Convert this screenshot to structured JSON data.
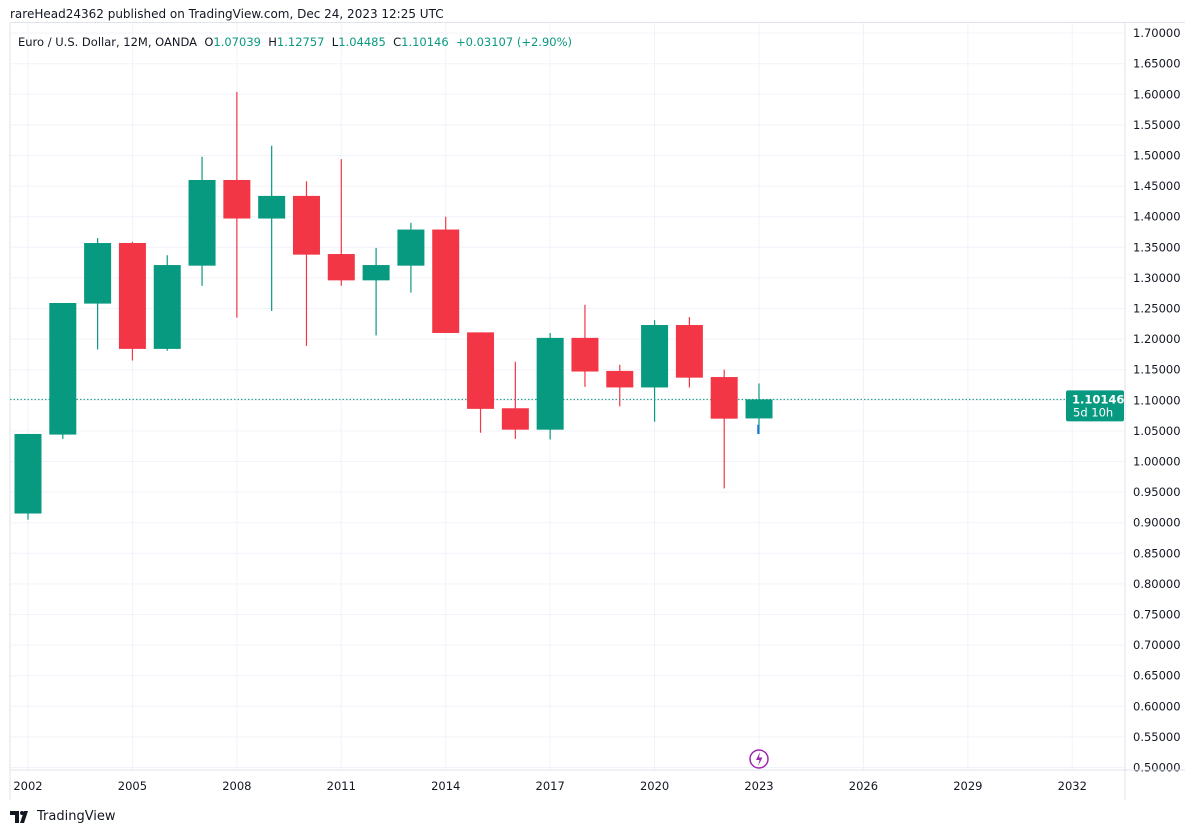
{
  "header": {
    "published": "rareHead24362 published on TradingView.com, Dec 24, 2023 12:25 UTC"
  },
  "legend": {
    "symbol": "Euro / U.S. Dollar, 12M, OANDA",
    "o_label": "O",
    "o": "1.07039",
    "h_label": "H",
    "h": "1.12757",
    "l_label": "L",
    "l": "1.04485",
    "c_label": "C",
    "c": "1.10146",
    "change": "+0.03107 (+2.90%)"
  },
  "last_price": {
    "value": "1.10146",
    "countdown": "5d 10h"
  },
  "footer": {
    "brand": "TradingView"
  },
  "colors": {
    "up": "#089981",
    "down": "#f23645",
    "grid": "#f0f3fa",
    "last_line": "#089981",
    "marker": "#9c27b0"
  },
  "chart_data": {
    "type": "candlestick",
    "title": "Euro / U.S. Dollar, 12M, OANDA",
    "ylim": [
      0.5,
      1.7
    ],
    "y_ticks": [
      "1.70000",
      "1.65000",
      "1.60000",
      "1.55000",
      "1.50000",
      "1.45000",
      "1.40000",
      "1.35000",
      "1.30000",
      "1.25000",
      "1.20000",
      "1.15000",
      "1.10000",
      "1.05000",
      "1.00000",
      "0.95000",
      "0.90000",
      "0.85000",
      "0.80000",
      "0.75000",
      "0.70000",
      "0.65000",
      "0.60000",
      "0.55000",
      "0.50000"
    ],
    "x_ticks": [
      "2002",
      "2005",
      "2008",
      "2011",
      "2014",
      "2017",
      "2020",
      "2023",
      "2026",
      "2029",
      "2032"
    ],
    "grid": true,
    "candles": [
      {
        "year": 2002,
        "o": 0.915,
        "h": 1.045,
        "l": 0.905,
        "c": 1.045
      },
      {
        "year": 2003,
        "o": 1.044,
        "h": 1.259,
        "l": 1.037,
        "c": 1.259
      },
      {
        "year": 2004,
        "o": 1.258,
        "h": 1.365,
        "l": 1.183,
        "c": 1.357
      },
      {
        "year": 2005,
        "o": 1.357,
        "h": 1.359,
        "l": 1.165,
        "c": 1.184
      },
      {
        "year": 2006,
        "o": 1.184,
        "h": 1.337,
        "l": 1.181,
        "c": 1.321
      },
      {
        "year": 2007,
        "o": 1.32,
        "h": 1.498,
        "l": 1.287,
        "c": 1.46
      },
      {
        "year": 2008,
        "o": 1.46,
        "h": 1.604,
        "l": 1.235,
        "c": 1.397
      },
      {
        "year": 2009,
        "o": 1.397,
        "h": 1.516,
        "l": 1.246,
        "c": 1.434
      },
      {
        "year": 2010,
        "o": 1.434,
        "h": 1.458,
        "l": 1.189,
        "c": 1.338
      },
      {
        "year": 2011,
        "o": 1.339,
        "h": 1.494,
        "l": 1.287,
        "c": 1.296
      },
      {
        "year": 2012,
        "o": 1.296,
        "h": 1.349,
        "l": 1.206,
        "c": 1.321
      },
      {
        "year": 2013,
        "o": 1.32,
        "h": 1.39,
        "l": 1.276,
        "c": 1.379
      },
      {
        "year": 2014,
        "o": 1.379,
        "h": 1.4,
        "l": 1.21,
        "c": 1.21
      },
      {
        "year": 2015,
        "o": 1.211,
        "h": 1.211,
        "l": 1.047,
        "c": 1.086
      },
      {
        "year": 2016,
        "o": 1.087,
        "h": 1.163,
        "l": 1.037,
        "c": 1.052
      },
      {
        "year": 2017,
        "o": 1.052,
        "h": 1.21,
        "l": 1.036,
        "c": 1.202
      },
      {
        "year": 2018,
        "o": 1.202,
        "h": 1.256,
        "l": 1.122,
        "c": 1.147
      },
      {
        "year": 2019,
        "o": 1.148,
        "h": 1.158,
        "l": 1.09,
        "c": 1.121
      },
      {
        "year": 2020,
        "o": 1.121,
        "h": 1.231,
        "l": 1.065,
        "c": 1.223
      },
      {
        "year": 2021,
        "o": 1.223,
        "h": 1.236,
        "l": 1.121,
        "c": 1.137
      },
      {
        "year": 2022,
        "o": 1.138,
        "h": 1.15,
        "l": 0.956,
        "c": 1.07
      },
      {
        "year": 2023,
        "o": 1.07039,
        "h": 1.12757,
        "l": 1.04485,
        "c": 1.10146
      }
    ]
  }
}
